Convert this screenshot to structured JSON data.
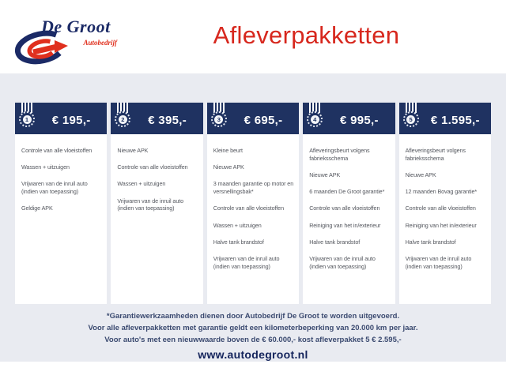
{
  "brand": {
    "name": "De Groot",
    "subtitle": "Autobedrijf"
  },
  "page": {
    "title": "Afleverpakketten",
    "website": "www.autodegroot.nl"
  },
  "colors": {
    "navy": "#1f3261",
    "logo_blue": "#1b2a66",
    "red": "#d7271d",
    "logo_red": "#e0301e",
    "band_background": "#e9ebf1",
    "card_background": "#ffffff",
    "card_text": "#54575e",
    "footnote_text": "#3b4a70"
  },
  "icons": {
    "brand": "brand-logo-icon",
    "medal": "medal-icon"
  },
  "packages": [
    {
      "number": "1",
      "price": "€ 195,-",
      "items": [
        "Controle van alle vloeistoffen",
        "Wassen + uitzuigen",
        "Vrijwaren van de inruil auto (indien van toepassing)",
        "Geldige APK"
      ]
    },
    {
      "number": "2",
      "price": "€ 395,-",
      "items": [
        "Nieuwe APK",
        "Controle van alle vloeistoffen",
        "Wassen + uitzuigen",
        "Vrijwaren van de inruil auto (indien van toepassing)"
      ]
    },
    {
      "number": "3",
      "price": "€ 695,-",
      "items": [
        "Kleine beurt",
        "Nieuwe APK",
        "3 maanden garantie op motor en versnellingsbak*",
        "Controle van alle vloeistoffen",
        "Wassen + uitzuigen",
        "Halve tank brandstof",
        "Vrijwaren van de inruil auto (indien van toepassing)"
      ]
    },
    {
      "number": "4",
      "price": "€ 995,-",
      "items": [
        "Afleveringsbeurt volgens fabrieksschema",
        "Nieuwe APK",
        "6 maanden De Groot garantie*",
        "Controle van alle vloeistoffen",
        "Reiniging van het in/exterieur",
        "Halve tank brandstof",
        "Vrijwaren van de inruil auto (indien van toepassing)"
      ]
    },
    {
      "number": "5",
      "price": "€ 1.595,-",
      "items": [
        "Afleveringsbeurt volgens fabrieksschema",
        "Nieuwe APK",
        "12 maanden Bovag garantie*",
        "Controle van alle vloeistoffen",
        "Reiniging van het in/exterieur",
        "Halve tank brandstof",
        "Vrijwaren van de inruil auto (indien van toepassing)"
      ]
    }
  ],
  "footnotes": [
    "*Garantiewerkzaamheden dienen door Autobedrijf De Groot te worden uitgevoerd.",
    "Voor alle afleverpakketten met garantie geldt een kilometerbeperking van 20.000 km per jaar.",
    "Voor auto's met een nieuwwaarde boven de € 60.000,- kost afleverpakket 5 € 2.595,-"
  ]
}
